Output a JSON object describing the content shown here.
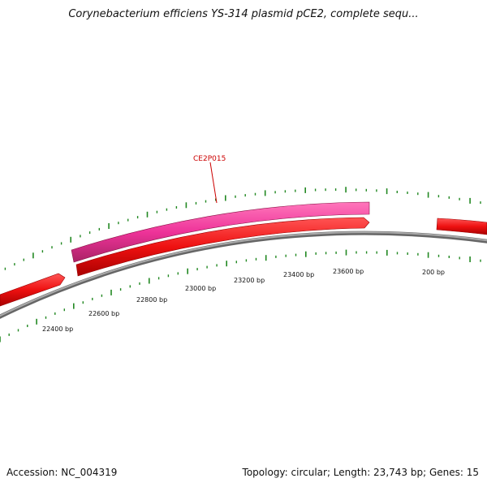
{
  "title": "Corynebacterium efficiens YS-314 plasmid pCE2, complete sequ...",
  "footer": {
    "accession": "Accession: NC_004319",
    "summary": "Topology: circular; Length: 23,743 bp; Genes: 15"
  },
  "colors": {
    "forward_gene": "#ee1111",
    "highlight_gene": "#ee3399",
    "backbone": "#888888",
    "ticks": "#228822",
    "label": "#cc0000"
  },
  "scale_labels": [
    "22400 bp",
    "22600 bp",
    "22800 bp",
    "23000 bp",
    "23200 bp",
    "23400 bp",
    "23600 bp",
    "200 bp"
  ],
  "gene_labels": [
    "CE2P015"
  ]
}
